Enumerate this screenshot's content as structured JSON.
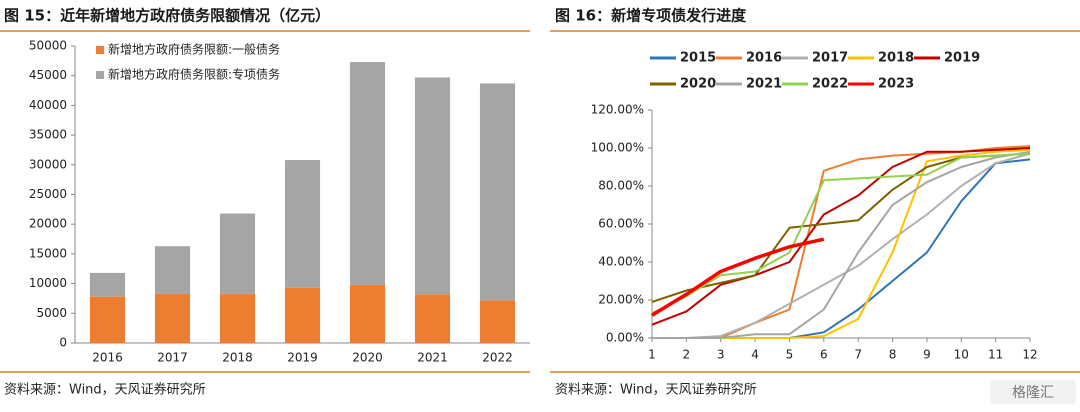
{
  "chart_data": [
    {
      "type": "bar",
      "stacked": true,
      "title": "图 15：近年新增地方政府债务限额情况（亿元）",
      "source": "资料来源：Wind，天风证券研究所",
      "categories": [
        "2016",
        "2017",
        "2018",
        "2019",
        "2020",
        "2021",
        "2022"
      ],
      "series": [
        {
          "name": "新增地方政府债务限额:一般债务",
          "color": "#ed7d31",
          "values": [
            7800,
            8300,
            8300,
            9300,
            9800,
            8200,
            7200
          ]
        },
        {
          "name": "新增地方政府债务限额:专项债务",
          "color": "#a5a5a5",
          "values": [
            4000,
            8000,
            13500,
            21500,
            37500,
            36500,
            36500
          ]
        }
      ],
      "ylim": [
        0,
        50000
      ],
      "yticks": [
        0,
        5000,
        10000,
        15000,
        20000,
        25000,
        30000,
        35000,
        40000,
        45000,
        50000
      ],
      "grid": false,
      "legend": "upper left"
    },
    {
      "type": "line",
      "title": "图 16：新增专项债发行进度",
      "source": "资料来源：Wind，天风证券研究所",
      "x": [
        1,
        2,
        3,
        4,
        5,
        6,
        7,
        8,
        9,
        10,
        11,
        12
      ],
      "series": [
        {
          "name": "2015",
          "color": "#2e75b6",
          "values": [
            0,
            0,
            0,
            0,
            0,
            3,
            15,
            30,
            45,
            72,
            92,
            94
          ]
        },
        {
          "name": "2016",
          "color": "#ed7d31",
          "values": [
            0,
            0,
            0,
            8,
            15,
            88,
            94,
            96,
            97,
            98,
            100,
            101
          ]
        },
        {
          "name": "2017",
          "color": "#b0b0b0",
          "values": [
            0,
            0,
            1,
            8,
            18,
            28,
            38,
            52,
            65,
            80,
            92,
            97
          ]
        },
        {
          "name": "2018",
          "color": "#ffc000",
          "values": [
            0,
            0,
            0,
            0,
            0,
            1,
            10,
            45,
            93,
            96,
            98,
            99
          ]
        },
        {
          "name": "2019",
          "color": "#c00000",
          "values": [
            7,
            14,
            28,
            33,
            40,
            65,
            75,
            90,
            98,
            98,
            99,
            100
          ]
        },
        {
          "name": "2020",
          "color": "#7f6000",
          "values": [
            19,
            25,
            29,
            33,
            58,
            60,
            62,
            78,
            90,
            95,
            96,
            97
          ]
        },
        {
          "name": "2021",
          "color": "#a5a5a5",
          "values": [
            0,
            0,
            0,
            2,
            2,
            15,
            45,
            70,
            82,
            90,
            95,
            98
          ]
        },
        {
          "name": "2022",
          "color": "#92d050",
          "values": [
            13,
            22,
            33,
            35,
            45,
            83,
            84,
            85,
            86,
            95,
            96,
            97
          ]
        },
        {
          "name": "2023",
          "color": "#ff0000",
          "values": [
            12,
            23,
            35,
            42,
            48,
            52,
            null,
            null,
            null,
            null,
            null,
            null
          ]
        }
      ],
      "xlim": [
        1,
        12
      ],
      "xticks": [
        1,
        2,
        3,
        4,
        5,
        6,
        7,
        8,
        9,
        10,
        11,
        12
      ],
      "ylim": [
        0,
        120
      ],
      "yticks": [
        {
          "value": 0,
          "label": "0.00%"
        },
        {
          "value": 20,
          "label": "20.00%"
        },
        {
          "value": 40,
          "label": "40.00%"
        },
        {
          "value": 60,
          "label": "60.00%"
        },
        {
          "value": 80,
          "label": "80.00%"
        },
        {
          "value": 100,
          "label": "100.00%"
        },
        {
          "value": 120,
          "label": "120.00%"
        }
      ],
      "grid": false,
      "legend": "top"
    }
  ],
  "watermark": "格隆汇"
}
